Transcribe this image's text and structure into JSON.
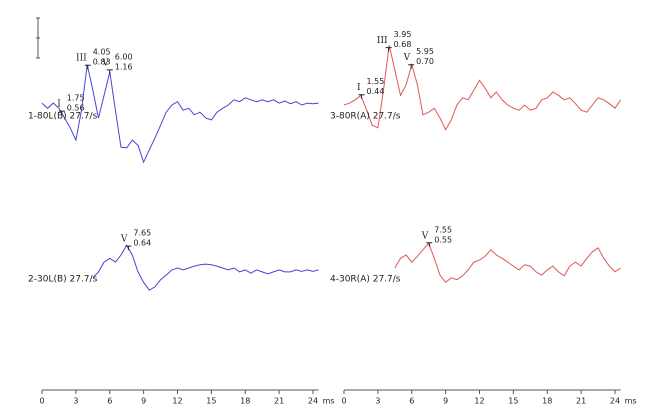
{
  "chart_data": [
    {
      "type": "line",
      "name": "1-80L(B) 27.7/s",
      "color": "#4646d2",
      "xlim": [
        0,
        24.5
      ],
      "ylim": [
        -1.3,
        1.3
      ],
      "x": [
        0,
        0.5,
        1,
        1.5,
        2,
        2.5,
        3,
        3.5,
        4,
        4.5,
        5,
        5.5,
        6,
        6.5,
        7,
        7.5,
        8,
        8.5,
        9,
        9.5,
        10,
        10.5,
        11,
        11.5,
        12,
        12.5,
        13,
        13.5,
        14,
        14.5,
        15,
        15.5,
        16,
        16.5,
        17,
        17.5,
        18,
        18.5,
        19,
        19.5,
        20,
        20.5,
        21,
        21.5,
        22,
        22.5,
        23,
        23.5,
        24,
        24.5
      ],
      "values": [
        0.03,
        -0.05,
        0.03,
        -0.05,
        -0.2,
        -0.35,
        -0.54,
        -0.08,
        0.62,
        0.23,
        -0.2,
        0.15,
        0.51,
        -0.08,
        -0.65,
        -0.66,
        -0.54,
        -0.62,
        -0.88,
        -0.69,
        -0.51,
        -0.31,
        -0.11,
        0,
        0.05,
        -0.08,
        -0.05,
        -0.15,
        -0.11,
        -0.2,
        -0.23,
        -0.11,
        -0.05,
        0,
        0.08,
        0.05,
        0.11,
        0.08,
        0.05,
        0.08,
        0.05,
        0.08,
        0.03,
        0.06,
        0.02,
        0.05,
        0,
        0.03,
        0.02,
        0.03
      ],
      "peaks": [
        {
          "label": "I",
          "latency": 1.75,
          "amplitude": 0.56
        },
        {
          "label": "III",
          "latency": 4.05,
          "amplitude": 0.83
        },
        {
          "label": "V",
          "latency": {
            "value": 6,
            "label": "6.00"
          },
          "amplitude": 1.16
        }
      ]
    },
    {
      "type": "line",
      "name": "3-80R(A) 27.7/s",
      "color": "#e25555",
      "xlim": [
        0,
        24.5
      ],
      "ylim": [
        -1.3,
        1.3
      ],
      "x": [
        0,
        0.5,
        1,
        1.5,
        2,
        2.5,
        3,
        3.5,
        4,
        4.5,
        5,
        5.5,
        6,
        6.5,
        7,
        7.5,
        8,
        8.5,
        9,
        9.5,
        10,
        10.5,
        11,
        11.5,
        12,
        12.5,
        13,
        13.5,
        14,
        14.5,
        15,
        15.5,
        16,
        16.5,
        17,
        17.5,
        18,
        18.5,
        19,
        19.5,
        20,
        20.5,
        21,
        21.5,
        22,
        22.5,
        23,
        23.5,
        24,
        24.5
      ],
      "values": [
        0,
        0.03,
        0.08,
        0.15,
        -0.08,
        -0.31,
        -0.35,
        0.23,
        0.92,
        0.54,
        0.15,
        0.31,
        0.62,
        0.31,
        -0.15,
        -0.11,
        -0.05,
        -0.2,
        -0.38,
        -0.23,
        0,
        0.11,
        0.08,
        0.23,
        0.38,
        0.26,
        0.11,
        0.2,
        0.08,
        0,
        -0.05,
        -0.08,
        0,
        -0.08,
        -0.05,
        0.08,
        0.11,
        0.2,
        0.15,
        0.08,
        0.11,
        0.02,
        -0.08,
        -0.11,
        0,
        0.11,
        0.08,
        0.02,
        -0.05,
        0.08
      ],
      "peaks": [
        {
          "label": "I",
          "latency": 1.55,
          "amplitude": 0.44
        },
        {
          "label": "III",
          "latency": 3.95,
          "amplitude": 0.68
        },
        {
          "label": "V",
          "latency": 5.95,
          "amplitude": {
            "value": 0.7,
            "label": "0.70"
          }
        }
      ]
    },
    {
      "type": "line",
      "name": "2-30L(B) 27.7/s",
      "color": "#4646d2",
      "xlim": [
        0,
        24.5
      ],
      "ylim": [
        -1.3,
        1.3
      ],
      "x": [
        4.5,
        5,
        5.5,
        6,
        6.5,
        7,
        7.5,
        8,
        8.5,
        9,
        9.5,
        10,
        10.5,
        11,
        11.5,
        12,
        12.5,
        13,
        13.5,
        14,
        14.5,
        15,
        15.5,
        16,
        16.5,
        17,
        17.5,
        18,
        18.5,
        19,
        19.5,
        20,
        20.5,
        21,
        21.5,
        22,
        22.5,
        23,
        23.5,
        24,
        24.5
      ],
      "values": [
        -0.15,
        -0.06,
        0.09,
        0.15,
        0.09,
        0.2,
        0.35,
        0.2,
        -0.06,
        -0.22,
        -0.34,
        -0.29,
        -0.18,
        -0.11,
        -0.03,
        0,
        -0.03,
        0,
        0.03,
        0.05,
        0.06,
        0.05,
        0.03,
        0,
        -0.03,
        0,
        -0.06,
        -0.03,
        -0.08,
        -0.03,
        -0.06,
        -0.09,
        -0.06,
        -0.03,
        -0.06,
        -0.06,
        -0.03,
        -0.05,
        -0.03,
        -0.05,
        -0.03
      ],
      "peaks": [
        {
          "label": "V",
          "latency": 7.65,
          "amplitude": 0.64
        }
      ],
      "xticks": [
        0,
        3,
        6,
        9,
        12,
        15,
        18,
        21,
        24
      ],
      "xlabel": "ms"
    },
    {
      "type": "line",
      "name": "4-30R(A) 27.7/s",
      "color": "#e25555",
      "xlim": [
        0,
        24.5
      ],
      "ylim": [
        -1.3,
        1.3
      ],
      "x": [
        4.5,
        5,
        5.5,
        6,
        6.5,
        7,
        7.5,
        8,
        8.5,
        9,
        9.5,
        10,
        10.5,
        11,
        11.5,
        12,
        12.5,
        13,
        13.5,
        14,
        14.5,
        15,
        15.5,
        16,
        16.5,
        17,
        17.5,
        18,
        18.5,
        19,
        19.5,
        20,
        20.5,
        21,
        21.5,
        22,
        22.5,
        23,
        23.5,
        24,
        24.5
      ],
      "values": [
        0,
        0.15,
        0.2,
        0.09,
        0.18,
        0.28,
        0.38,
        0.15,
        -0.11,
        -0.22,
        -0.15,
        -0.18,
        -0.12,
        -0.03,
        0.09,
        0.12,
        0.18,
        0.28,
        0.2,
        0.15,
        0.09,
        0.03,
        -0.03,
        0.05,
        0.03,
        -0.06,
        -0.11,
        -0.03,
        0.03,
        -0.06,
        -0.12,
        0.03,
        0.09,
        0.03,
        0.15,
        0.25,
        0.31,
        0.15,
        0.03,
        -0.06,
        0
      ],
      "peaks": [
        {
          "label": "V",
          "latency": 7.55,
          "amplitude": 0.55
        }
      ],
      "xticks": [
        0,
        3,
        6,
        9,
        12,
        15,
        18,
        21,
        24
      ],
      "xlabel": "ms"
    }
  ]
}
